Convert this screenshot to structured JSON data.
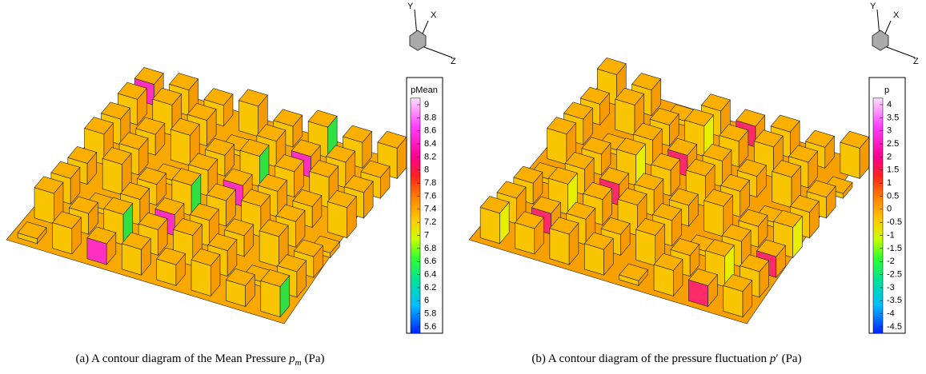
{
  "panels": [
    {
      "caption": {
        "prefix": "(a) A contour diagram of the Mean Pressure",
        "symbol": "p",
        "subscript": "m",
        "unit": "(Pa)"
      },
      "legend": {
        "title": "pMean",
        "labels": [
          "9",
          "8.8",
          "8.6",
          "8.4",
          "8.2",
          "8",
          "7.8",
          "7.6",
          "7.4",
          "7.2",
          "7",
          "6.8",
          "6.6",
          "6.4",
          "6.2",
          "6",
          "5.8",
          "5.6"
        ]
      },
      "triad": {
        "y": "Y",
        "x": "X",
        "z": "Z"
      }
    },
    {
      "caption": {
        "prefix": "(b) A contour diagram of the pressure fluctuation",
        "symbol": "p",
        "prime": "′",
        "unit": "(Pa)"
      },
      "legend": {
        "title": "p",
        "labels": [
          "4",
          "3.5",
          "3",
          "2.5",
          "2",
          "1.5",
          "1",
          "0.5",
          "0",
          "-0.5",
          "-1",
          "-1.5",
          "-2",
          "-2.5",
          "-3",
          "-3.5",
          "-4",
          "-4.5"
        ]
      },
      "triad": {
        "y": "Y",
        "x": "X",
        "z": "Z"
      }
    }
  ]
}
